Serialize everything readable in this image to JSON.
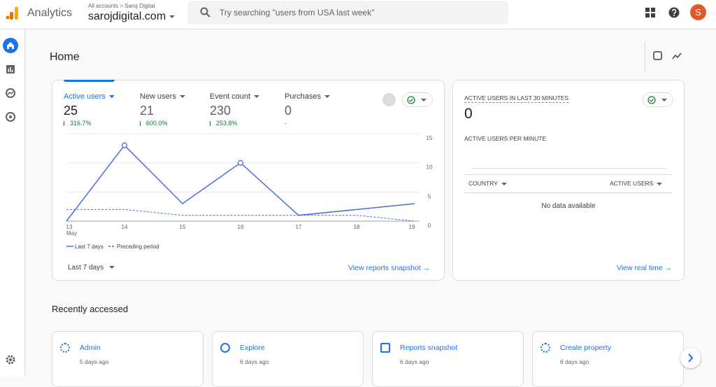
{
  "header": {
    "app_name": "Analytics",
    "breadcrumb": "All accounts",
    "account": "Saroj Digital",
    "property": "sarojdigital.com",
    "search_placeholder": "Try searching \"users from USA last week\"",
    "avatar": "S"
  },
  "page_title": "Home",
  "metrics": [
    {
      "label": "Active users",
      "value": 25,
      "change": "316.7%"
    },
    {
      "label": "New users",
      "value": 21,
      "change": "600.0%"
    },
    {
      "label": "Event count",
      "value": 230,
      "change": "253.8%"
    },
    {
      "label": "Purchases",
      "value": 0,
      "change": "-"
    }
  ],
  "chart_data": {
    "type": "line",
    "categories": [
      "13",
      "14",
      "15",
      "16",
      "17",
      "18",
      "19"
    ],
    "x_month": "May",
    "series": [
      {
        "name": "Last 7 days",
        "color": "#4a6ee0",
        "style": "solid",
        "values": [
          0,
          13,
          3,
          10,
          1,
          2,
          3
        ]
      },
      {
        "name": "Preceding period",
        "color": "#4a6ee0",
        "style": "dashed",
        "values": [
          2,
          2,
          1,
          1,
          1,
          1,
          0
        ]
      }
    ],
    "ylim": [
      0,
      15
    ],
    "yticks": [
      0,
      5,
      10,
      15
    ],
    "grid": true
  },
  "date_range": "Last 7 days",
  "snapshot_link": "View reports snapshot",
  "realtime": {
    "title": "ACTIVE USERS IN LAST 30 MINUTES",
    "value": 0,
    "subtitle": "ACTIVE USERS PER MINUTE",
    "columns": [
      "COUNTRY",
      "ACTIVE USERS"
    ],
    "empty": "No data available",
    "link": "View real time"
  },
  "recent": {
    "title": "Recently accessed",
    "items": [
      {
        "name": "Admin",
        "time": "5 days ago"
      },
      {
        "name": "Explore",
        "time": "6 days ago"
      },
      {
        "name": "Reports snapshot",
        "time": "6 days ago"
      },
      {
        "name": "Create property",
        "time": "6 days ago"
      }
    ]
  }
}
